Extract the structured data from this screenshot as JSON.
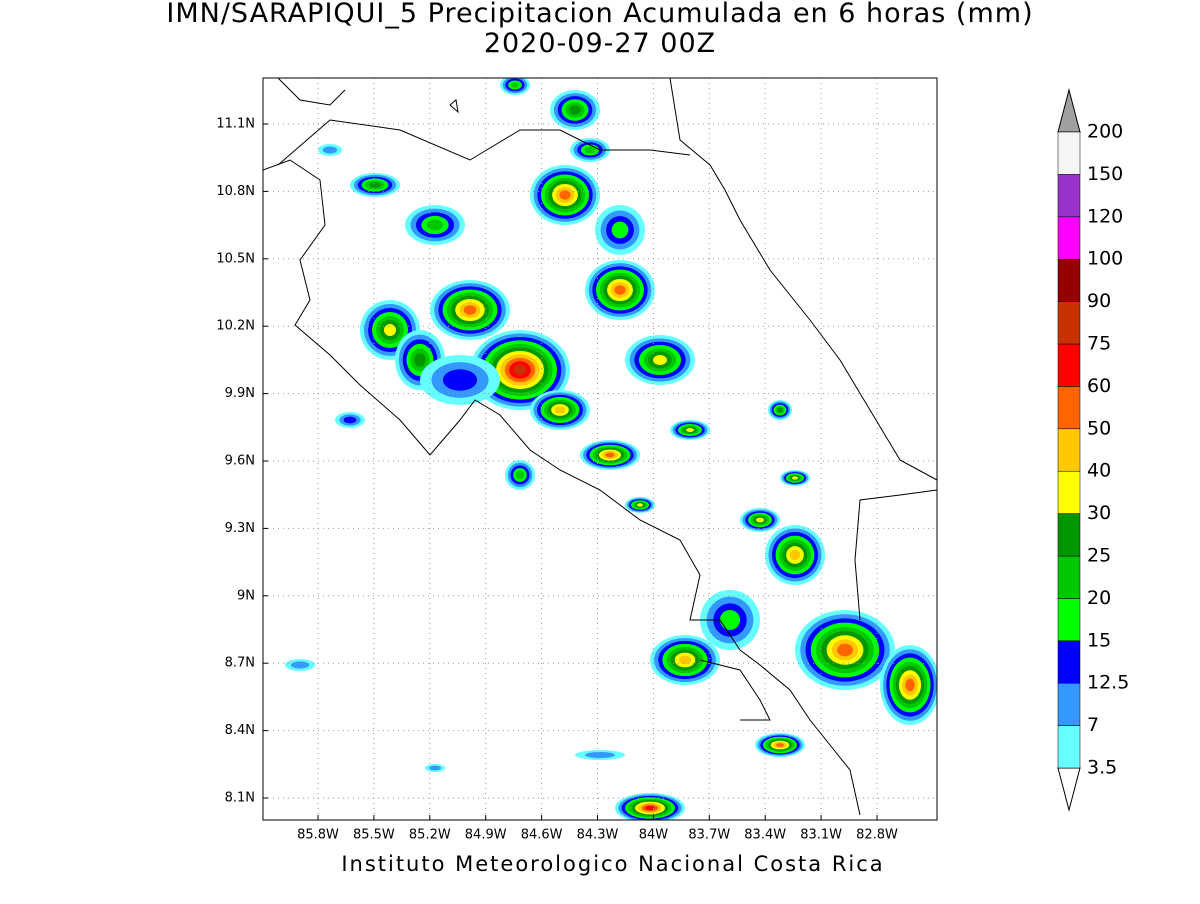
{
  "title": "IMN/SARAPIQUI_5 Precipitacion Acumulada en 6 horas (mm)",
  "subtitle": "2020-09-27 00Z",
  "lon_labels": [
    "85.8W",
    "85.5W",
    "85.2W",
    "84.9W",
    "84.6W",
    "84.3W",
    "84W",
    "83.7W",
    "83.4W",
    "83.1W",
    "82.8W"
  ],
  "lat_labels": [
    "11.1N",
    "10.8N",
    "10.5N",
    "10.2N",
    "9.9N",
    "9.6N",
    "9.3N",
    "9N",
    "8.7N",
    "8.4N",
    "8.1N"
  ],
  "legend": {
    "levels": [
      3.5,
      7,
      12.5,
      15,
      20,
      25,
      30,
      40,
      50,
      60,
      75,
      90,
      100,
      120,
      150,
      200
    ],
    "colors": [
      "#66ffff",
      "#3399ff",
      "#0000ff",
      "#00ff00",
      "#00c800",
      "#009600",
      "#ffff00",
      "#ffc800",
      "#ff6400",
      "#ff0000",
      "#c83200",
      "#960000",
      "#ff00ff",
      "#9933cc",
      "#f5f5f5"
    ],
    "over_color": "#a0a0a0",
    "under_color": "#ffffff"
  },
  "footer": "Instituto Meteorologico Nacional Costa Rica"
}
